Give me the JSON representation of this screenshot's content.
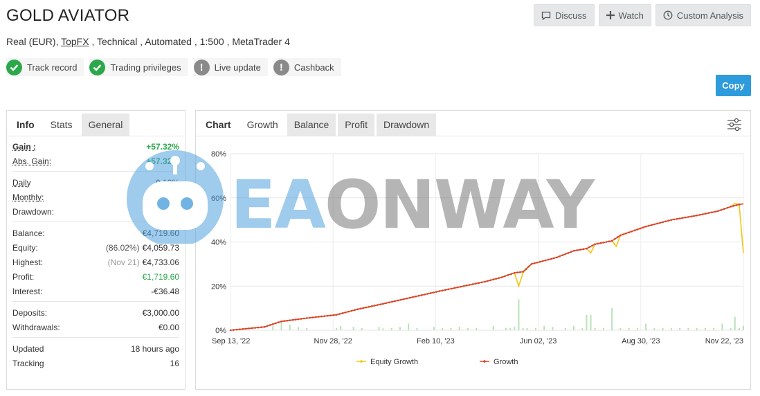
{
  "header": {
    "title": "GOLD AVIATOR",
    "subtitle_prefix": "Real (EUR),",
    "broker": "TopFX",
    "subtitle_suffix": ", Technical , Automated , 1:500 , MetaTrader 4"
  },
  "actions": {
    "discuss": "Discuss",
    "watch": "Watch",
    "custom_analysis": "Custom Analysis",
    "copy": "Copy"
  },
  "badges": [
    {
      "label": "Track record",
      "status": "ok"
    },
    {
      "label": "Trading privileges",
      "status": "ok"
    },
    {
      "label": "Live update",
      "status": "warn"
    },
    {
      "label": "Cashback",
      "status": "warn"
    }
  ],
  "left_tabs": [
    "Info",
    "Stats",
    "General"
  ],
  "stats": {
    "gain": {
      "label": "Gain :",
      "value": "+57.32%"
    },
    "abs_gain": {
      "label": "Abs. Gain:",
      "value": "+57.32%"
    },
    "daily": {
      "label": "Daily",
      "value": "0.10%"
    },
    "monthly": {
      "label": "Monthly:",
      "value": "3.10%"
    },
    "drawdown": {
      "label": "Drawdown:",
      "value": "14.82%"
    },
    "balance": {
      "label": "Balance:",
      "value": "€4,719.60"
    },
    "equity": {
      "label": "Equity:",
      "note": "(86.02%)",
      "value": "€4,059.73"
    },
    "highest": {
      "label": "Highest:",
      "note": "(Nov 21)",
      "value": "€4,733.06"
    },
    "profit": {
      "label": "Profit:",
      "value": "€1,719.60"
    },
    "interest": {
      "label": "Interest:",
      "value": "-€36.48"
    },
    "deposits": {
      "label": "Deposits:",
      "value": "€3,000.00"
    },
    "withdrawals": {
      "label": "Withdrawals:",
      "value": "€0.00"
    },
    "updated": {
      "label": "Updated",
      "value": "18 hours ago"
    },
    "tracking": {
      "label": "Tracking",
      "value": "16"
    }
  },
  "chart_tabs": [
    "Chart",
    "Growth",
    "Balance",
    "Profit",
    "Drawdown"
  ],
  "watermark": {
    "part1": "EA",
    "part2": "ONWAY"
  },
  "colors": {
    "growth": "#d9432b",
    "equity": "#f2c511",
    "bars": "#b8e2b8",
    "green": "#2aa84b",
    "copy": "#2d9bdc"
  },
  "chart_data": {
    "type": "line",
    "x_ticks": [
      "Sep 13, '22",
      "Nov 28, '22",
      "Feb 10, '23",
      "Jun 02, '23",
      "Aug 30, '23",
      "Nov 22, '23"
    ],
    "y_ticks": [
      "0%",
      "20%",
      "40%",
      "60%",
      "80%"
    ],
    "ylim": [
      0,
      80
    ],
    "legend_position": "bottom",
    "series": [
      {
        "name": "Equity Growth",
        "color": "#f2c511",
        "points": [
          [
            0,
            0
          ],
          [
            8,
            1.5
          ],
          [
            12,
            4
          ],
          [
            18,
            5.5
          ],
          [
            25,
            7
          ],
          [
            30,
            9.5
          ],
          [
            36,
            12
          ],
          [
            43,
            15
          ],
          [
            50,
            18
          ],
          [
            55,
            20
          ],
          [
            60,
            22
          ],
          [
            64,
            24
          ],
          [
            67,
            26
          ],
          [
            68,
            20
          ],
          [
            69,
            26
          ],
          [
            71,
            30
          ],
          [
            77,
            33
          ],
          [
            81,
            36
          ],
          [
            84,
            37
          ],
          [
            85,
            35
          ],
          [
            86,
            39
          ],
          [
            90,
            40.5
          ],
          [
            91,
            38
          ],
          [
            92,
            43
          ],
          [
            98,
            47
          ],
          [
            104,
            50
          ],
          [
            110,
            52
          ],
          [
            115,
            54
          ],
          [
            118,
            56
          ],
          [
            119,
            57.5
          ],
          [
            120,
            57
          ],
          [
            121,
            35
          ]
        ]
      },
      {
        "name": "Growth",
        "color": "#d9432b",
        "points": [
          [
            0,
            0
          ],
          [
            8,
            1.5
          ],
          [
            12,
            4
          ],
          [
            18,
            5.5
          ],
          [
            25,
            7
          ],
          [
            30,
            9.5
          ],
          [
            36,
            12
          ],
          [
            43,
            15
          ],
          [
            50,
            18
          ],
          [
            55,
            20
          ],
          [
            60,
            22
          ],
          [
            64,
            24
          ],
          [
            67,
            26
          ],
          [
            69,
            26.5
          ],
          [
            71,
            30
          ],
          [
            77,
            33
          ],
          [
            81,
            36
          ],
          [
            84,
            37
          ],
          [
            86,
            39
          ],
          [
            90,
            40.5
          ],
          [
            92,
            43
          ],
          [
            98,
            47
          ],
          [
            104,
            50
          ],
          [
            110,
            52
          ],
          [
            115,
            54
          ],
          [
            118,
            56
          ],
          [
            120,
            57
          ],
          [
            121,
            57.3
          ]
        ]
      }
    ],
    "bars": [
      [
        10,
        2
      ],
      [
        12,
        4
      ],
      [
        14,
        2.5
      ],
      [
        16,
        1.5
      ],
      [
        18,
        1
      ],
      [
        25,
        1
      ],
      [
        26,
        2
      ],
      [
        29,
        1.5
      ],
      [
        31,
        1
      ],
      [
        35,
        1.5
      ],
      [
        36,
        0.8
      ],
      [
        38,
        1
      ],
      [
        40,
        1.5
      ],
      [
        42,
        3
      ],
      [
        44,
        1
      ],
      [
        48,
        1.5
      ],
      [
        50,
        1
      ],
      [
        52,
        1
      ],
      [
        54,
        1.5
      ],
      [
        56,
        1
      ],
      [
        58,
        1
      ],
      [
        62,
        2
      ],
      [
        65,
        1
      ],
      [
        66,
        1
      ],
      [
        67,
        1.5
      ],
      [
        68,
        14
      ],
      [
        69,
        1
      ],
      [
        70,
        1
      ],
      [
        72,
        1
      ],
      [
        74,
        2
      ],
      [
        76,
        1.5
      ],
      [
        79,
        1
      ],
      [
        81,
        2
      ],
      [
        83,
        1
      ],
      [
        84,
        7
      ],
      [
        85,
        7
      ],
      [
        86,
        1
      ],
      [
        88,
        1
      ],
      [
        90,
        10
      ],
      [
        92,
        1
      ],
      [
        94,
        1
      ],
      [
        96,
        1
      ],
      [
        98,
        3
      ],
      [
        100,
        1
      ],
      [
        102,
        1
      ],
      [
        104,
        1
      ],
      [
        106,
        1
      ],
      [
        108,
        1
      ],
      [
        110,
        1
      ],
      [
        112,
        1
      ],
      [
        114,
        1
      ],
      [
        116,
        3
      ],
      [
        118,
        1
      ],
      [
        119,
        6
      ],
      [
        120,
        1
      ],
      [
        121,
        2
      ]
    ]
  }
}
